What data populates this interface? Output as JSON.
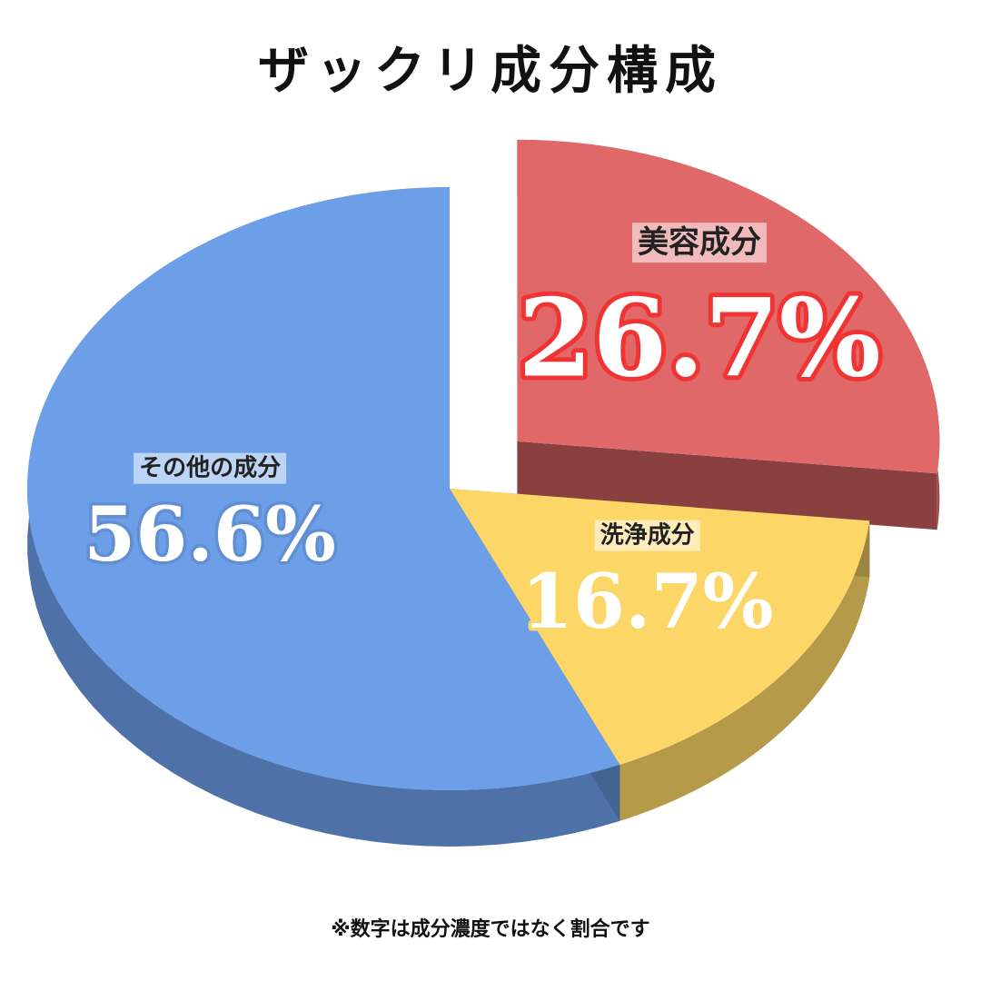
{
  "chart_data": {
    "type": "pie",
    "title": "ザックリ成分構成",
    "categories": [
      "美容成分",
      "洗浄成分",
      "その他の成分"
    ],
    "values": [
      26.7,
      16.7,
      56.6
    ],
    "value_labels": [
      "26.7%",
      "16.7%",
      "56.6%"
    ],
    "colors": [
      "#e06868",
      "#fcd667",
      "#6c9fe8"
    ],
    "explode": [
      true,
      false,
      false
    ],
    "footnote": "※数字は成分濃度ではなく割合です"
  }
}
